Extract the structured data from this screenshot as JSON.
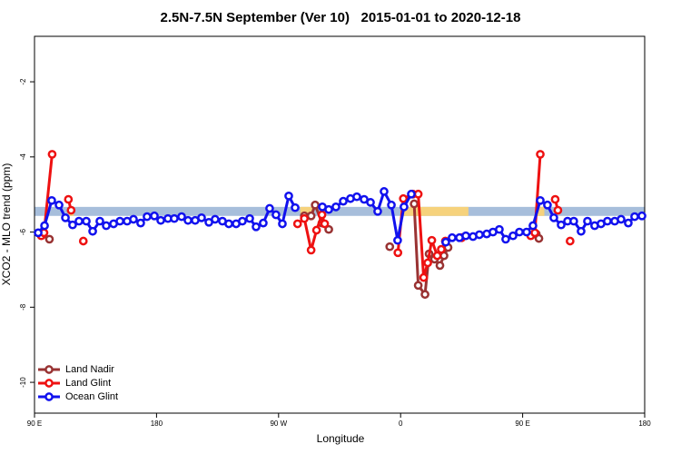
{
  "chart_data": {
    "type": "line",
    "title": "2.5N-7.5N September (Ver 10)   2015-01-01 to 2020-12-18",
    "xlabel": "Longitude",
    "ylabel": "XCO2 - MLO trend (ppm)",
    "xlim": [
      90,
      540
    ],
    "xticks": [
      {
        "value": 90,
        "label": "90 E"
      },
      {
        "value": 180,
        "label": "180"
      },
      {
        "value": 270,
        "label": "90 W"
      },
      {
        "value": 360,
        "label": "0"
      },
      {
        "value": 450,
        "label": "90 E"
      },
      {
        "value": 540,
        "label": "180"
      }
    ],
    "ylim": [
      -10.82,
      -0.79
    ],
    "yticks": [
      -2,
      -4,
      -6,
      -8,
      -10
    ],
    "band": {
      "ylim": [
        -5.57,
        -5.33
      ],
      "color": "#a7bedb"
    },
    "highlights": {
      "x": [
        [
          115,
          119
        ],
        [
          286,
          296
        ],
        [
          360,
          410
        ],
        [
          461,
          466
        ]
      ],
      "color": "#f6d27c"
    },
    "legend": "bottom-left",
    "series": [
      {
        "name": "Land Nadir",
        "color": "#993333",
        "x": [
          96,
          101,
          null,
          289,
          294,
          297,
          302,
          307,
          null,
          352,
          null,
          370,
          373,
          378,
          381,
          385,
          389,
          392,
          395,
          null,
          460,
          462
        ],
        "values": [
          -6.07,
          -6.19,
          null,
          -5.57,
          -5.57,
          -5.28,
          -5.76,
          -5.93,
          null,
          -6.39,
          null,
          -5.25,
          -7.42,
          -7.66,
          -6.58,
          -6.72,
          -6.89,
          -6.63,
          -6.41,
          null,
          -6.05,
          -6.17
        ]
      },
      {
        "name": "Land Glint",
        "color": "#ee1111",
        "x": [
          95,
          97,
          103,
          null,
          115,
          117,
          null,
          126,
          null,
          284,
          289,
          294,
          298,
          302,
          304,
          null,
          358,
          362,
          369,
          373,
          377,
          380,
          383,
          387,
          390,
          393,
          null,
          405,
          null,
          456,
          459,
          463,
          null,
          474,
          476,
          null,
          485
        ],
        "values": [
          -6.1,
          -6.02,
          -3.93,
          null,
          -5.13,
          -5.42,
          null,
          -6.24,
          null,
          -5.78,
          -5.64,
          -6.48,
          -5.95,
          -5.54,
          -5.78,
          null,
          -6.55,
          -5.11,
          -4.99,
          -4.99,
          -7.21,
          -6.82,
          -6.22,
          -6.63,
          -6.46,
          -6.24,
          null,
          -6.15,
          null,
          -6.1,
          -6.02,
          -3.93,
          null,
          -5.13,
          -5.42,
          null,
          -6.24
        ]
      },
      {
        "name": "Ocean Glint",
        "color": "#1111ee",
        "x": [
          92.7,
          97.4,
          102.7,
          108.1,
          112.8,
          118.1,
          122.8,
          128.2,
          132.9,
          138.2,
          142.9,
          148.3,
          153.0,
          158.3,
          163.0,
          168.3,
          173.0,
          178.4,
          183.1,
          188.4,
          193.1,
          198.5,
          203.2,
          208.5,
          213.2,
          218.6,
          223.2,
          228.6,
          233.3,
          238.7,
          243.3,
          248.7,
          253.4,
          258.7,
          263.4,
          268.1,
          272.8,
          277.5,
          282.2,
          null,
          302.3,
          307.0,
          312.3,
          317.7,
          323.0,
          327.7,
          333.1,
          337.8,
          343.1,
          347.8,
          353.2,
          357.8,
          362.5,
          367.9,
          null,
          393.3,
          398.0,
          403.4,
          408.1,
          413.4,
          418.1,
          423.5,
          428.1,
          432.8,
          437.5,
          442.9,
          447.6,
          452.9,
          457.6,
          463.0,
          468.3,
          473.0,
          478.4,
          483.1,
          487.7,
          493.1,
          497.8,
          503.1,
          507.8,
          512.5,
          517.9,
          522.6,
          527.9,
          532.6,
          538.0
        ],
        "values": [
          -6.02,
          -5.83,
          -5.16,
          -5.28,
          -5.62,
          -5.81,
          -5.71,
          -5.71,
          -5.98,
          -5.71,
          -5.83,
          -5.78,
          -5.71,
          -5.71,
          -5.66,
          -5.76,
          -5.59,
          -5.57,
          -5.69,
          -5.64,
          -5.64,
          -5.59,
          -5.69,
          -5.69,
          -5.62,
          -5.74,
          -5.66,
          -5.71,
          -5.78,
          -5.78,
          -5.71,
          -5.64,
          -5.86,
          -5.76,
          -5.37,
          -5.54,
          -5.78,
          -5.04,
          -5.35,
          null,
          -5.33,
          -5.4,
          -5.33,
          -5.18,
          -5.11,
          -5.06,
          -5.13,
          -5.21,
          -5.45,
          -4.92,
          -5.28,
          -6.22,
          -5.33,
          -4.99,
          null,
          -6.27,
          -6.15,
          -6.15,
          -6.1,
          -6.12,
          -6.07,
          -6.05,
          -6.0,
          -5.93,
          -6.19,
          -6.1,
          -6.0,
          -6.0,
          -5.83,
          -5.16,
          -5.28,
          -5.62,
          -5.81,
          -5.71,
          -5.71,
          -5.98,
          -5.71,
          -5.83,
          -5.78,
          -5.71,
          -5.71,
          -5.66,
          -5.76,
          -5.59,
          -5.57
        ]
      }
    ]
  }
}
